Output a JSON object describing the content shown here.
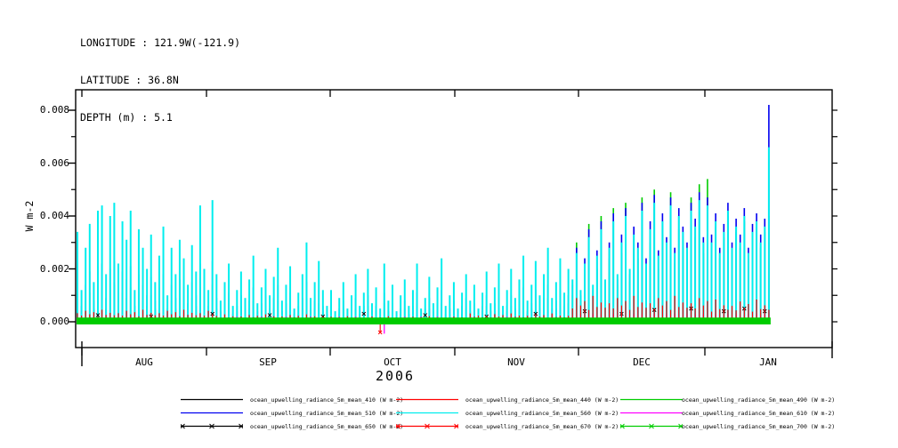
{
  "header": {
    "longitude": "LONGITUDE : 121.9W(-121.9)",
    "latitude": "LATITUDE : 36.8N",
    "depth": "DEPTH (m) : 5.1"
  },
  "chart_data": {
    "type": "line",
    "title": "",
    "xlabel": "",
    "ylabel": "W m-2",
    "year_label": "2006",
    "months": [
      "AUG",
      "SEP",
      "OCT",
      "NOV",
      "DEC",
      "JAN"
    ],
    "y_tick_labels": [
      "0.000",
      "0.002",
      "0.004",
      "0.006",
      "0.008"
    ],
    "y_tick_values": [
      0.0,
      0.002,
      0.004,
      0.006,
      0.008
    ],
    "ylim": [
      -0.001,
      0.0088
    ],
    "grid": false,
    "legend_position": "bottom",
    "value_unit_note": "series daily peak values stored in units of 1e-4 W m-2, one value per day from late July 2006",
    "days": 170,
    "series": [
      {
        "name": "ocean_upwelling_radiance_5m_mean_410",
        "wavelength": 410,
        "color": "#000000",
        "marker": "none",
        "daily_values_1e4": [
          2,
          1,
          2,
          3,
          1,
          2,
          3,
          1,
          2,
          3,
          1,
          2,
          1,
          3,
          1,
          2,
          1,
          2,
          3,
          1,
          2,
          1,
          2,
          1,
          3,
          1,
          2,
          1,
          2,
          1,
          3,
          2,
          1,
          2,
          1,
          2,
          1,
          1,
          2,
          1,
          1,
          2,
          1,
          1,
          2,
          1,
          1,
          2,
          1,
          1,
          2,
          1,
          1,
          2,
          1,
          1,
          2,
          1,
          1,
          2,
          1,
          1,
          1,
          2,
          1,
          1,
          2,
          1,
          1,
          2,
          1,
          1,
          2,
          1,
          1,
          2,
          1,
          1,
          2,
          1,
          1,
          2,
          1,
          1,
          3,
          1,
          1,
          2,
          1,
          1,
          2,
          1,
          1,
          2,
          1,
          1,
          2,
          1,
          2,
          1,
          3,
          1,
          2,
          1,
          2,
          3,
          1,
          2,
          1,
          2,
          3,
          1,
          2,
          1,
          3,
          2,
          1,
          3,
          2,
          1,
          2,
          3,
          2,
          4,
          2,
          3,
          5,
          2,
          4,
          3,
          2,
          5,
          3,
          4,
          2,
          6,
          3,
          4,
          5,
          2,
          6,
          4,
          3,
          5,
          2,
          6,
          3,
          5,
          4,
          2,
          6,
          4,
          5,
          3,
          5,
          4,
          5,
          3,
          4,
          6,
          3,
          5,
          4,
          6,
          3,
          4,
          5,
          3,
          4,
          5
        ]
      },
      {
        "name": "ocean_upwelling_radiance_5m_mean_440",
        "wavelength": 440,
        "color": "#ff0000",
        "marker": "none",
        "daily_values_1e4": [
          5,
          7,
          4,
          6,
          8,
          5,
          7,
          4,
          6,
          8,
          5,
          7,
          4,
          6,
          8,
          5,
          7,
          4,
          6,
          5,
          4,
          6,
          3,
          5,
          4,
          6,
          3,
          5,
          4,
          3,
          5,
          4,
          3,
          5,
          3,
          4,
          2,
          3,
          4,
          2,
          3,
          4,
          2,
          3,
          4,
          2,
          3,
          4,
          2,
          3,
          4,
          2,
          3,
          2,
          3,
          4,
          2,
          3,
          4,
          2,
          3,
          2,
          3,
          2,
          2,
          3,
          2,
          2,
          3,
          2,
          2,
          3,
          2,
          2,
          3,
          2,
          2,
          3,
          2,
          2,
          3,
          2,
          2,
          3,
          2,
          2,
          3,
          2,
          2,
          3,
          2,
          2,
          3,
          2,
          2,
          3,
          3,
          2,
          3,
          4,
          2,
          3,
          4,
          2,
          3,
          4,
          2,
          3,
          4,
          3,
          2,
          4,
          3,
          2,
          4,
          3,
          5,
          3,
          4,
          3,
          4,
          5,
          8,
          4,
          10,
          6,
          5,
          12,
          6,
          8,
          10,
          5,
          13,
          6,
          9,
          5,
          11,
          7,
          14,
          6,
          9,
          12,
          7,
          10,
          6,
          13,
          7,
          11,
          8,
          6,
          12,
          9,
          14,
          7,
          12,
          8,
          10,
          6,
          9,
          11,
          7,
          10,
          8,
          11,
          6,
          9,
          10,
          7,
          9,
          8
        ]
      },
      {
        "name": "ocean_upwelling_radiance_5m_mean_490",
        "wavelength": 490,
        "color": "#00cc00",
        "marker": "none",
        "daily_values_1e4": [
          10,
          4,
          8,
          11,
          5,
          13,
          13,
          5,
          12,
          14,
          7,
          11,
          9,
          13,
          4,
          11,
          8,
          6,
          10,
          5,
          8,
          11,
          3,
          8,
          5,
          9,
          7,
          4,
          9,
          6,
          13,
          6,
          4,
          14,
          5,
          2,
          5,
          7,
          2,
          4,
          6,
          3,
          5,
          8,
          2,
          4,
          6,
          3,
          5,
          8,
          2,
          4,
          6,
          2,
          3,
          5,
          9,
          3,
          5,
          7,
          4,
          2,
          4,
          1,
          3,
          5,
          1,
          3,
          5,
          2,
          3,
          6,
          2,
          4,
          1,
          7,
          2,
          4,
          1,
          3,
          5,
          2,
          4,
          7,
          1,
          3,
          5,
          2,
          4,
          7,
          2,
          3,
          5,
          1,
          3,
          5,
          3,
          5,
          2,
          4,
          6,
          2,
          4,
          7,
          2,
          4,
          6,
          3,
          5,
          8,
          3,
          5,
          8,
          3,
          6,
          9,
          3,
          5,
          8,
          4,
          7,
          10,
          30,
          8,
          18,
          37,
          10,
          20,
          40,
          12,
          24,
          43,
          14,
          26,
          45,
          15,
          28,
          24,
          47,
          18,
          30,
          50,
          20,
          33,
          26,
          49,
          22,
          35,
          28,
          24,
          47,
          32,
          52,
          26,
          54,
          28,
          36,
          24,
          32,
          40,
          26,
          34,
          28,
          38,
          24,
          32,
          36,
          28,
          34,
          40
        ]
      },
      {
        "name": "ocean_upwelling_radiance_5m_mean_510",
        "wavelength": 510,
        "color": "#0000f0",
        "marker": "none",
        "daily_values_1e4": [
          17,
          6,
          14,
          19,
          8,
          21,
          22,
          9,
          20,
          23,
          11,
          19,
          16,
          21,
          6,
          18,
          14,
          10,
          17,
          8,
          13,
          18,
          5,
          14,
          9,
          16,
          12,
          7,
          15,
          10,
          22,
          10,
          6,
          23,
          9,
          4,
          8,
          11,
          3,
          6,
          10,
          5,
          8,
          13,
          4,
          7,
          10,
          5,
          9,
          14,
          4,
          7,
          11,
          3,
          6,
          9,
          15,
          5,
          8,
          12,
          6,
          3,
          6,
          2,
          5,
          8,
          2,
          5,
          9,
          3,
          6,
          10,
          4,
          6,
          2,
          11,
          4,
          7,
          2,
          5,
          8,
          3,
          6,
          11,
          2,
          5,
          9,
          4,
          7,
          12,
          3,
          5,
          8,
          2,
          6,
          9,
          4,
          7,
          2,
          6,
          10,
          4,
          7,
          11,
          3,
          6,
          10,
          5,
          8,
          13,
          4,
          7,
          12,
          5,
          9,
          14,
          5,
          8,
          12,
          6,
          10,
          14,
          28,
          10,
          24,
          35,
          12,
          27,
          38,
          14,
          30,
          41,
          16,
          33,
          43,
          18,
          36,
          30,
          45,
          24,
          38,
          48,
          27,
          41,
          32,
          47,
          28,
          43,
          36,
          30,
          45,
          39,
          49,
          32,
          47,
          33,
          41,
          28,
          37,
          45,
          30,
          39,
          33,
          43,
          28,
          37,
          41,
          33,
          39,
          82
        ]
      },
      {
        "name": "ocean_upwelling_radiance_5m_mean_560",
        "wavelength": 560,
        "color": "#00eeee",
        "marker": "none",
        "daily_values_1e4": [
          34,
          12,
          28,
          37,
          15,
          42,
          44,
          18,
          40,
          45,
          22,
          38,
          31,
          42,
          12,
          35,
          28,
          20,
          33,
          15,
          25,
          36,
          10,
          28,
          18,
          31,
          24,
          14,
          29,
          19,
          44,
          20,
          12,
          46,
          18,
          8,
          15,
          22,
          6,
          12,
          19,
          9,
          16,
          25,
          7,
          13,
          20,
          10,
          17,
          28,
          8,
          14,
          21,
          5,
          11,
          18,
          30,
          9,
          15,
          23,
          12,
          6,
          12,
          4,
          9,
          15,
          5,
          10,
          18,
          6,
          11,
          20,
          7,
          13,
          5,
          22,
          8,
          14,
          4,
          10,
          16,
          6,
          12,
          22,
          5,
          9,
          17,
          7,
          13,
          24,
          6,
          10,
          15,
          5,
          11,
          18,
          8,
          14,
          5,
          11,
          19,
          7,
          13,
          22,
          6,
          12,
          20,
          9,
          16,
          25,
          8,
          14,
          23,
          10,
          18,
          28,
          9,
          15,
          24,
          11,
          20,
          16,
          26,
          12,
          22,
          32,
          14,
          25,
          35,
          16,
          28,
          38,
          18,
          30,
          40,
          20,
          33,
          28,
          42,
          22,
          35,
          45,
          25,
          38,
          30,
          44,
          26,
          40,
          34,
          28,
          42,
          36,
          46,
          30,
          44,
          30,
          38,
          26,
          34,
          42,
          28,
          36,
          30,
          40,
          26,
          34,
          38,
          30,
          36,
          66
        ]
      },
      {
        "name": "ocean_upwelling_radiance_5m_mean_610",
        "wavelength": 610,
        "color": "#ff00ff",
        "marker": "none",
        "outlier_day": 75,
        "outlier_value_1e4": -4.5,
        "daily_values_1e4": [
          1,
          2,
          1,
          1,
          2,
          1,
          1,
          2,
          1,
          1,
          2,
          1,
          1,
          2,
          1,
          1,
          2,
          1,
          1,
          2,
          1,
          1,
          2,
          1,
          1,
          2,
          1,
          1,
          2,
          1,
          1,
          2,
          1,
          1,
          1,
          1,
          2,
          1,
          1,
          2,
          1,
          1,
          2,
          1,
          1,
          2,
          1,
          1,
          2,
          1,
          1,
          2,
          1,
          1,
          2,
          1,
          1,
          2,
          1,
          1,
          2,
          1,
          1,
          1,
          2,
          1,
          1,
          1,
          2,
          1,
          1,
          1,
          2,
          1,
          1,
          1,
          2,
          1,
          1,
          1,
          2,
          1,
          1,
          1,
          2,
          1,
          1,
          1,
          2,
          1,
          1,
          1,
          2,
          1,
          1,
          1,
          1,
          2,
          1,
          1,
          2,
          1,
          2,
          1,
          1,
          2,
          1,
          2,
          1,
          1,
          2,
          1,
          2,
          1,
          2,
          1,
          2,
          1,
          2,
          1,
          2,
          2,
          1,
          3,
          2,
          1,
          3,
          2,
          3,
          1,
          2,
          3,
          1,
          3,
          2,
          1,
          3,
          2,
          3,
          1,
          2,
          3,
          2,
          1,
          3,
          2,
          3,
          2,
          1,
          3,
          2,
          3,
          2,
          3,
          2,
          2,
          3,
          1,
          2,
          3,
          2,
          3,
          1,
          2,
          3,
          2,
          3,
          2,
          3,
          2
        ]
      },
      {
        "name": "ocean_upwelling_radiance_5m_mean_650",
        "wavelength": 650,
        "color": "#000000",
        "marker": "x",
        "sparse_points_day_value_1e4": [
          [
            5,
            2.5
          ],
          [
            18,
            2
          ],
          [
            33,
            3
          ],
          [
            47,
            2.5
          ],
          [
            60,
            2
          ],
          [
            70,
            3
          ],
          [
            85,
            2.5
          ],
          [
            100,
            2
          ],
          [
            112,
            3
          ],
          [
            124,
            4
          ],
          [
            133,
            3
          ],
          [
            141,
            4.5
          ],
          [
            150,
            5
          ],
          [
            158,
            4
          ],
          [
            163,
            5
          ],
          [
            168,
            4
          ]
        ]
      },
      {
        "name": "ocean_upwelling_radiance_5m_mean_670",
        "wavelength": 670,
        "color": "#ff0000",
        "marker": "x",
        "band_pattern_1e4": [
          2.5,
          1.8,
          3.2,
          2.2,
          2.8,
          1.6,
          3.5,
          2.0,
          2.6,
          1.9
        ],
        "period_scale": [
          [
            0,
            33,
            1.3
          ],
          [
            34,
            60,
            0.8
          ],
          [
            61,
            95,
            0.6
          ],
          [
            96,
            120,
            0.9
          ],
          [
            121,
            154,
            2.8
          ],
          [
            155,
            169,
            2.4
          ]
        ],
        "outlier_day": 74,
        "outlier_value_1e4": -4
      },
      {
        "name": "ocean_upwelling_radiance_5m_mean_700",
        "wavelength": 700,
        "color": "#00cc00",
        "marker": "x",
        "band_low_1e4": -1.0,
        "band_high_1e4": 1.6
      }
    ]
  },
  "legend": {
    "entries": [
      {
        "label": "ocean_upwelling_radiance_5m_mean_410 (W m-2)",
        "color": "#000000",
        "marker": "none"
      },
      {
        "label": "ocean_upwelling_radiance_5m_mean_440 (W m-2)",
        "color": "#ff0000",
        "marker": "none"
      },
      {
        "label": "ocean_upwelling_radiance_5m_mean_490 (W m-2)",
        "color": "#00cc00",
        "marker": "none"
      },
      {
        "label": "ocean_upwelling_radiance_5m_mean_510 (W m-2)",
        "color": "#0000f0",
        "marker": "none"
      },
      {
        "label": "ocean_upwelling_radiance_5m_mean_560 (W m-2)",
        "color": "#00eeee",
        "marker": "none"
      },
      {
        "label": "ocean_upwelling_radiance_5m_mean_610 (W m-2)",
        "color": "#ff00ff",
        "marker": "none"
      },
      {
        "label": "ocean_upwelling_radiance_5m_mean_650 (W m-2)",
        "color": "#000000",
        "marker": "x"
      },
      {
        "label": "ocean_upwelling_radiance_5m_mean_670 (W m-2)",
        "color": "#ff0000",
        "marker": "x"
      },
      {
        "label": "ocean_upwelling_radiance_5m_mean_700 (W m-2)",
        "color": "#00cc00",
        "marker": "x"
      }
    ]
  }
}
